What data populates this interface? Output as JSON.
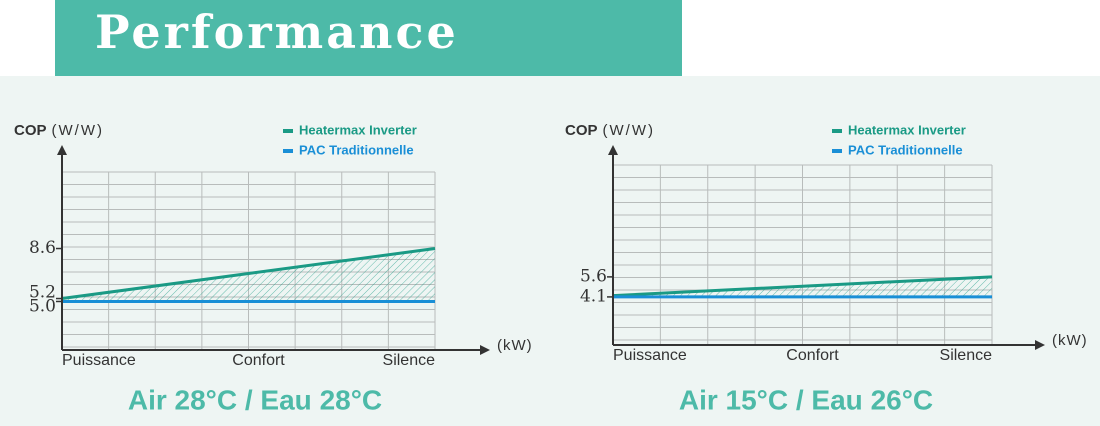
{
  "header": {
    "title": "Performance"
  },
  "chart_data": [
    {
      "type": "line",
      "title": "Air 28°C / Eau 28°C",
      "y_label": "COP",
      "y_unit": "(W/W)",
      "x_label": "(kW)",
      "categories": [
        "Puissance",
        "Confort",
        "Silence"
      ],
      "series": [
        {
          "name": "Heatermax Inverter",
          "color": "#1a9a85",
          "values": [
            5.2,
            6.9,
            8.6
          ]
        },
        {
          "name": "PAC Traditionnelle",
          "color": "#1a8fd6",
          "values": [
            5.0,
            5.0,
            5.0
          ]
        }
      ],
      "ylim": [
        1.7,
        15.3
      ],
      "yticks": [
        {
          "value": 5,
          "label": "5.0"
        },
        5.2,
        8.6
      ]
    },
    {
      "type": "line",
      "title": "Air 15°C / Eau 26°C",
      "y_label": "COP",
      "y_unit": "(W/W)",
      "x_label": "(kW)",
      "categories": [
        "Puissance",
        "Confort",
        "Silence"
      ],
      "series": [
        {
          "name": "Heatermax Inverter",
          "color": "#1a9a85",
          "values": [
            4.2,
            4.9,
            5.6
          ]
        },
        {
          "name": "PAC Traditionnelle",
          "color": "#1a8fd6",
          "values": [
            4.1,
            4.1,
            4.1
          ]
        }
      ],
      "ylim": [
        0.5,
        15.1
      ],
      "yticks": [
        4.1,
        5.6
      ]
    }
  ]
}
